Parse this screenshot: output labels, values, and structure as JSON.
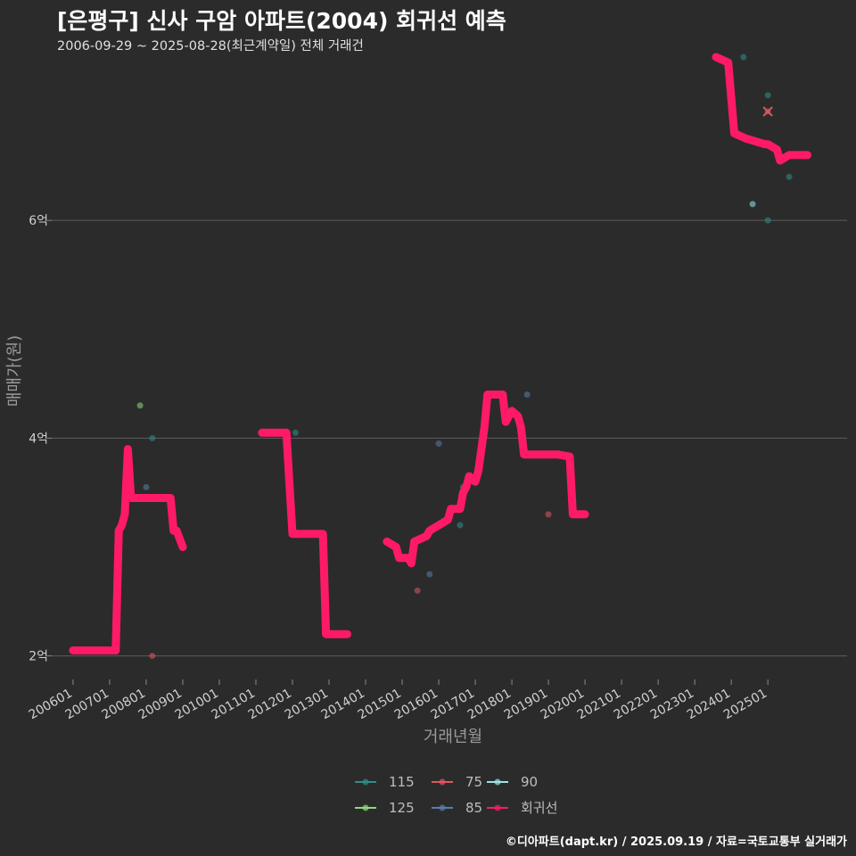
{
  "header": {
    "title": "[은평구] 신사 구암 아파트(2004) 회귀선 예측",
    "subtitle": "2006-09-29 ~ 2025-08-28(최근계약일) 전체 거래건"
  },
  "caption": "©디아파트(dapt.kr) / 2025.09.19 / 자료=국토교통부 실거래가",
  "chart_data": {
    "type": "scatter",
    "xlabel": "거래년월",
    "ylabel": "매매가(원)",
    "ylim": [
      1.8,
      7.5
    ],
    "xlim": [
      "2005-06",
      "2027-03"
    ],
    "y_ticks": [
      2,
      4,
      6
    ],
    "y_tick_labels": [
      "2억",
      "4억",
      "6억"
    ],
    "x_ticks": [
      "2006-01",
      "2007-01",
      "2008-01",
      "2009-01",
      "2010-01",
      "2011-01",
      "2012-01",
      "2013-01",
      "2014-01",
      "2015-01",
      "2016-01",
      "2017-01",
      "2018-01",
      "2019-01",
      "2020-01",
      "2021-01",
      "2022-01",
      "2023-01",
      "2024-01",
      "2025-01"
    ],
    "x_tick_labels": [
      "200601",
      "200701",
      "200801",
      "200901",
      "201001",
      "201101",
      "201201",
      "201301",
      "201401",
      "201501",
      "201601",
      "201701",
      "201801",
      "201901",
      "202001",
      "202101",
      "202201",
      "202301",
      "202401",
      "202501"
    ],
    "grid": true,
    "legend_position": "bottom",
    "colors": {
      "115": "#2f8f88",
      "125": "#8fd87a",
      "75": "#e0575e",
      "85": "#5a7fa8",
      "90": "#9fe3e3",
      "회귀선": "#ff1a66"
    },
    "legend": [
      {
        "key": "115",
        "label": "115"
      },
      {
        "key": "75",
        "label": "75"
      },
      {
        "key": "90",
        "label": "90"
      },
      {
        "key": "125",
        "label": "125"
      },
      {
        "key": "85",
        "label": "85"
      },
      {
        "key": "회귀선",
        "label": "회귀선"
      }
    ],
    "series": [
      {
        "name": "115",
        "points": [
          {
            "x": "2008-03",
            "y": 4.0
          },
          {
            "x": "2012-02",
            "y": 4.05
          },
          {
            "x": "2016-08",
            "y": 3.2
          },
          {
            "x": "2024-05",
            "y": 7.5
          },
          {
            "x": "2025-01",
            "y": 6.0
          },
          {
            "x": "2025-01",
            "y": 7.15
          },
          {
            "x": "2025-08",
            "y": 6.4
          }
        ]
      },
      {
        "name": "125",
        "points": [
          {
            "x": "2007-11",
            "y": 4.3
          }
        ]
      },
      {
        "name": "75",
        "points": [
          {
            "x": "2008-03",
            "y": 2.0
          },
          {
            "x": "2015-06",
            "y": 2.6
          },
          {
            "x": "2019-01",
            "y": 3.3
          },
          {
            "x": "2025-01",
            "y": 7.0
          }
        ]
      },
      {
        "name": "85",
        "points": [
          {
            "x": "2008-01",
            "y": 3.55
          },
          {
            "x": "2012-12",
            "y": 2.2
          },
          {
            "x": "2015-10",
            "y": 2.75
          },
          {
            "x": "2016-01",
            "y": 3.95
          },
          {
            "x": "2016-09",
            "y": 3.55
          },
          {
            "x": "2018-06",
            "y": 4.4
          }
        ]
      },
      {
        "name": "90",
        "points": [
          {
            "x": "2018-05",
            "y": 3.9
          },
          {
            "x": "2024-08",
            "y": 6.15
          }
        ]
      },
      {
        "name": "회귀선",
        "segments": [
          [
            {
              "x": "2006-01",
              "y": 2.05
            },
            {
              "x": "2007-03",
              "y": 2.05
            },
            {
              "x": "2007-04",
              "y": 3.15
            },
            {
              "x": "2007-05",
              "y": 3.2
            },
            {
              "x": "2007-06",
              "y": 3.3
            },
            {
              "x": "2007-07",
              "y": 3.9
            },
            {
              "x": "2007-08",
              "y": 3.45
            },
            {
              "x": "2008-09",
              "y": 3.45
            },
            {
              "x": "2008-10",
              "y": 3.15
            },
            {
              "x": "2008-11",
              "y": 3.15
            },
            {
              "x": "2009-01",
              "y": 3.0
            }
          ],
          [
            {
              "x": "2011-03",
              "y": 4.05
            },
            {
              "x": "2011-11",
              "y": 4.05
            },
            {
              "x": "2012-01",
              "y": 3.12
            },
            {
              "x": "2012-11",
              "y": 3.12
            },
            {
              "x": "2012-12",
              "y": 2.2
            },
            {
              "x": "2013-07",
              "y": 2.2
            }
          ],
          [
            {
              "x": "2014-08",
              "y": 3.05
            },
            {
              "x": "2014-11",
              "y": 3.0
            },
            {
              "x": "2014-12",
              "y": 2.9
            },
            {
              "x": "2015-03",
              "y": 2.9
            },
            {
              "x": "2015-04",
              "y": 2.85
            },
            {
              "x": "2015-05",
              "y": 3.05
            },
            {
              "x": "2015-09",
              "y": 3.1
            },
            {
              "x": "2015-10",
              "y": 3.15
            },
            {
              "x": "2016-01",
              "y": 3.2
            },
            {
              "x": "2016-04",
              "y": 3.25
            },
            {
              "x": "2016-05",
              "y": 3.35
            },
            {
              "x": "2016-08",
              "y": 3.35
            },
            {
              "x": "2016-09",
              "y": 3.5
            },
            {
              "x": "2016-10",
              "y": 3.55
            },
            {
              "x": "2016-11",
              "y": 3.65
            },
            {
              "x": "2017-01",
              "y": 3.6
            },
            {
              "x": "2017-02",
              "y": 3.7
            },
            {
              "x": "2017-04",
              "y": 4.1
            },
            {
              "x": "2017-05",
              "y": 4.4
            },
            {
              "x": "2017-10",
              "y": 4.4
            },
            {
              "x": "2017-11",
              "y": 4.15
            },
            {
              "x": "2018-01",
              "y": 4.25
            },
            {
              "x": "2018-03",
              "y": 4.2
            },
            {
              "x": "2018-04",
              "y": 4.1
            },
            {
              "x": "2018-05",
              "y": 3.85
            },
            {
              "x": "2019-04",
              "y": 3.85
            },
            {
              "x": "2019-08",
              "y": 3.83
            },
            {
              "x": "2019-09",
              "y": 3.3
            },
            {
              "x": "2020-01",
              "y": 3.3
            }
          ],
          [
            {
              "x": "2023-08",
              "y": 7.5
            },
            {
              "x": "2023-12",
              "y": 7.45
            },
            {
              "x": "2024-02",
              "y": 6.8
            },
            {
              "x": "2024-06",
              "y": 6.75
            },
            {
              "x": "2024-12",
              "y": 6.7
            },
            {
              "x": "2025-01",
              "y": 6.7
            },
            {
              "x": "2025-04",
              "y": 6.65
            },
            {
              "x": "2025-05",
              "y": 6.55
            },
            {
              "x": "2025-08",
              "y": 6.6
            },
            {
              "x": "2026-02",
              "y": 6.6
            }
          ]
        ]
      }
    ],
    "markers": [
      {
        "type": "x",
        "x": "2025-01",
        "y": 7.0,
        "color": "#e0575e"
      }
    ]
  }
}
